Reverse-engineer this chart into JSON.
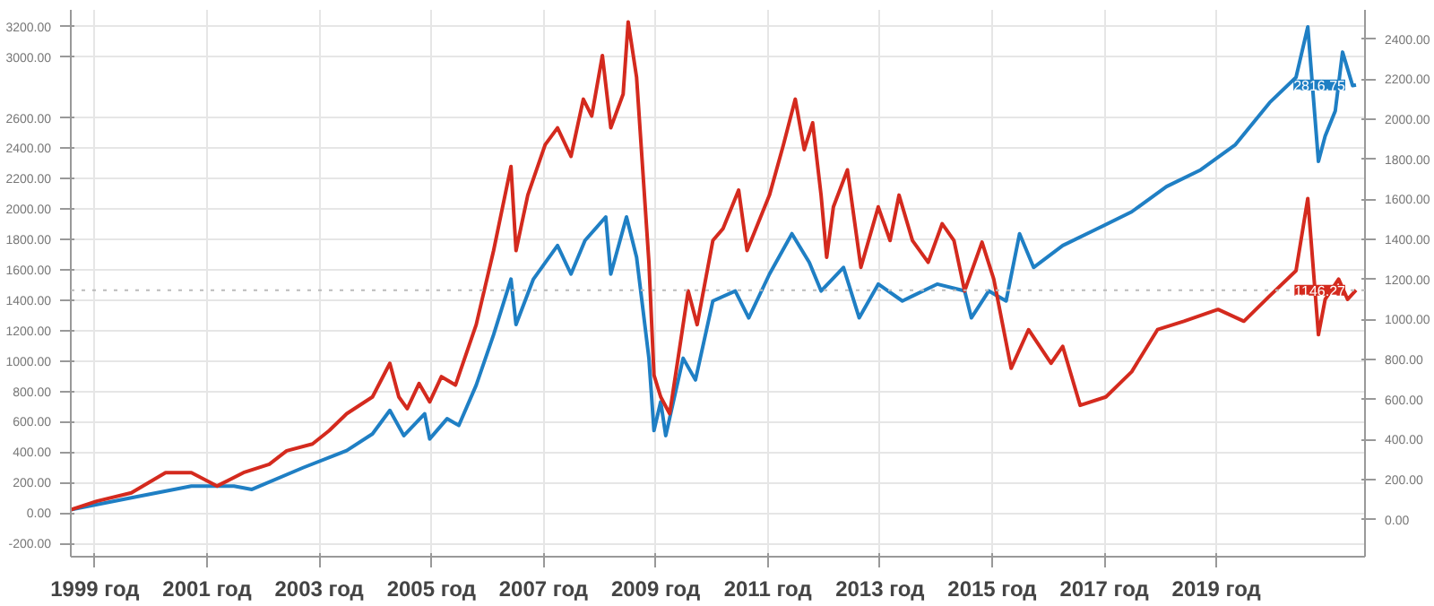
{
  "chart_data": {
    "type": "line",
    "xlim": [
      1998.57,
      2021.65
    ],
    "xticks": [
      {
        "value": 1999,
        "label": "1999 год"
      },
      {
        "value": 2001,
        "label": "2001 год"
      },
      {
        "value": 2003,
        "label": "2003 год"
      },
      {
        "value": 2005,
        "label": "2005 год"
      },
      {
        "value": 2007,
        "label": "2007 год"
      },
      {
        "value": 2009,
        "label": "2009 год"
      },
      {
        "value": 2011,
        "label": "2011 год"
      },
      {
        "value": 2013,
        "label": "2013 год"
      },
      {
        "value": 2015,
        "label": "2015 год"
      },
      {
        "value": 2017,
        "label": "2017 год"
      },
      {
        "value": 2019,
        "label": "2019 год"
      }
    ],
    "ylim": [
      -288,
      3311
    ],
    "yticks": [
      {
        "value": -200,
        "label": "-200.00"
      },
      {
        "value": 0,
        "label": "0.00"
      },
      {
        "value": 200,
        "label": "200.00"
      },
      {
        "value": 400,
        "label": "400.00"
      },
      {
        "value": 600,
        "label": "600.00"
      },
      {
        "value": 800,
        "label": "800.00"
      },
      {
        "value": 1000,
        "label": "1000.00"
      },
      {
        "value": 1200,
        "label": "1200.00"
      },
      {
        "value": 1400,
        "label": "1400.00"
      },
      {
        "value": 1600,
        "label": "1600.00"
      },
      {
        "value": 1800,
        "label": "1800.00"
      },
      {
        "value": 2000,
        "label": "2000.00"
      },
      {
        "value": 2200,
        "label": "2200.00"
      },
      {
        "value": 2400,
        "label": "2400.00"
      },
      {
        "value": 2600,
        "label": "2600.00"
      },
      {
        "value": 3000,
        "label": "3000.00"
      },
      {
        "value": 3200,
        "label": "3200.00"
      }
    ],
    "y2lim": [
      -185,
      2546
    ],
    "y2ticks": [
      {
        "value": 0,
        "label": "0.00"
      },
      {
        "value": 200,
        "label": "200.00"
      },
      {
        "value": 400,
        "label": "400.00"
      },
      {
        "value": 600,
        "label": "600.00"
      },
      {
        "value": 800,
        "label": "800.00"
      },
      {
        "value": 1000,
        "label": "1000.00"
      },
      {
        "value": 1200,
        "label": "1200.00"
      },
      {
        "value": 1400,
        "label": "1400.00"
      },
      {
        "value": 1600,
        "label": "1600.00"
      },
      {
        "value": 1800,
        "label": "1800.00"
      },
      {
        "value": 2000,
        "label": "2000.00"
      },
      {
        "value": 2200,
        "label": "2200.00"
      },
      {
        "value": 2400,
        "label": "2400.00"
      }
    ],
    "grid": true,
    "line_style": "solid",
    "marker": "none",
    "ref_lines": [
      {
        "axis": "y2",
        "value": 1146.27,
        "color": "#bbbbbb",
        "line_style": "dotted"
      }
    ],
    "annotations": [
      "2816.75",
      "1146.27"
    ],
    "series": [
      {
        "color": "#1f7fc4",
        "x": [
          1998.57,
          1999.65,
          2000.72,
          2001.48,
          2001.8,
          2002.72,
          2003.49,
          2003.95,
          2004.26,
          2004.51,
          2004.88,
          2004.97,
          2005.28,
          2005.49,
          2005.8,
          2006.11,
          2006.42,
          2006.51,
          2006.82,
          2007.25,
          2007.49,
          2007.74,
          2008.11,
          2008.2,
          2008.48,
          2008.66,
          2008.88,
          2008.97,
          2009.09,
          2009.18,
          2009.49,
          2009.71,
          2010.02,
          2010.42,
          2010.66,
          2011.03,
          2011.43,
          2011.74,
          2011.95,
          2012.35,
          2012.63,
          2012.97,
          2013.4,
          2014.02,
          2014.51,
          2014.63,
          2014.94,
          2015.25,
          2015.49,
          2015.74,
          2016.26,
          2016.88,
          2017.49,
          2018.11,
          2018.72,
          2019.34,
          2019.95,
          2020.42,
          2020.63,
          2020.82,
          2020.94,
          2021.12,
          2021.25,
          2021.43,
          2021.49
        ],
        "values": [
          22,
          100,
          177,
          177,
          155,
          299,
          410,
          520,
          675,
          509,
          653,
          487,
          620,
          576,
          841,
          1173,
          1539,
          1240,
          1539,
          1760,
          1572,
          1793,
          1948,
          1572,
          1948,
          1683,
          1018,
          542,
          731,
          509,
          1018,
          875,
          1395,
          1461,
          1284,
          1572,
          1838,
          1649,
          1461,
          1616,
          1284,
          1506,
          1395,
          1506,
          1461,
          1284,
          1461,
          1395,
          1838,
          1616,
          1760,
          1871,
          1982,
          2148,
          2258,
          2424,
          2701,
          2867,
          3199,
          2314,
          2480,
          2646,
          3033,
          2812,
          2816.75
        ]
      },
      {
        "color": "#d42a1e",
        "axis": "y2",
        "x": [
          1998.57,
          1999.03,
          1999.65,
          2000.26,
          2000.72,
          2001.18,
          2001.65,
          2002.11,
          2002.42,
          2002.88,
          2003.18,
          2003.49,
          2003.95,
          2004.26,
          2004.42,
          2004.57,
          2004.78,
          2004.97,
          2005.18,
          2005.43,
          2005.8,
          2006.11,
          2006.42,
          2006.51,
          2006.72,
          2007.03,
          2007.25,
          2007.49,
          2007.71,
          2007.86,
          2008.05,
          2008.2,
          2008.42,
          2008.51,
          2008.66,
          2008.88,
          2008.97,
          2009.09,
          2009.25,
          2009.4,
          2009.58,
          2009.74,
          2010.02,
          2010.2,
          2010.48,
          2010.63,
          2011.03,
          2011.28,
          2011.49,
          2011.65,
          2011.8,
          2011.95,
          2012.05,
          2012.17,
          2012.42,
          2012.66,
          2012.97,
          2013.18,
          2013.34,
          2013.58,
          2013.86,
          2014.11,
          2014.32,
          2014.51,
          2014.82,
          2015.03,
          2015.34,
          2015.65,
          2016.05,
          2016.26,
          2016.57,
          2017.03,
          2017.49,
          2017.95,
          2018.42,
          2019.03,
          2019.49,
          2019.95,
          2020.42,
          2020.63,
          2020.82,
          2020.94,
          2021.18,
          2021.34,
          2021.49
        ],
        "values": [
          50,
          92,
          134,
          235,
          235,
          168,
          235,
          277,
          344,
          378,
          445,
          529,
          613,
          781,
          613,
          554,
          680,
          588,
          714,
          672,
          974,
          1344,
          1764,
          1344,
          1621,
          1873,
          1957,
          1814,
          2100,
          2016,
          2318,
          1957,
          2125,
          2486,
          2209,
          1285,
          722,
          613,
          529,
          806,
          1142,
          974,
          1394,
          1453,
          1646,
          1344,
          1621,
          1873,
          2100,
          1848,
          1982,
          1621,
          1310,
          1562,
          1747,
          1260,
          1562,
          1394,
          1621,
          1394,
          1285,
          1478,
          1394,
          1142,
          1386,
          1201,
          756,
          949,
          781,
          865,
          571,
          613,
          739,
          949,
          991,
          1050,
          991,
          1117,
          1243,
          1604,
          924,
          1100,
          1201,
          1100,
          1146.27
        ]
      }
    ]
  }
}
